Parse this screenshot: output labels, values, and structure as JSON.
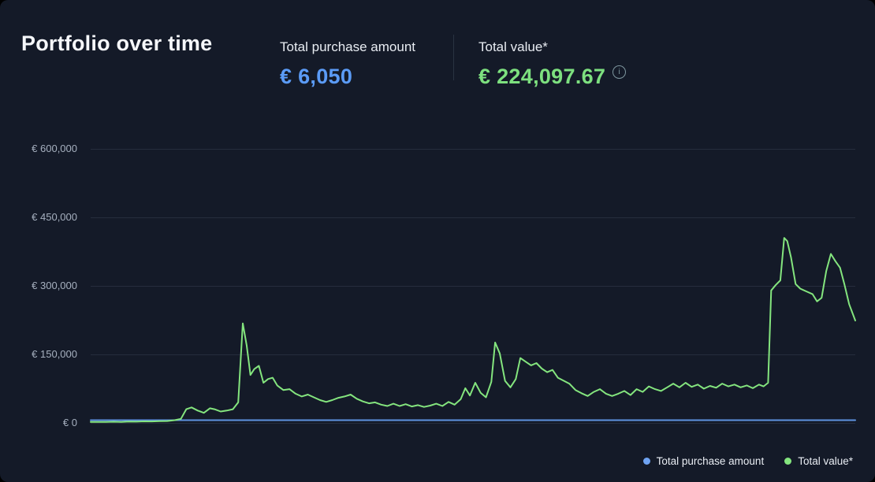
{
  "header": {
    "title": "Portfolio over time",
    "info_glyph": "i",
    "stats": [
      {
        "label": "Total purchase amount",
        "value": "€ 6,050",
        "color": "#5b9bf6"
      },
      {
        "label": "Total value*",
        "value": "€ 224,097.67",
        "color": "#7de07f"
      }
    ]
  },
  "legend": {
    "items": [
      {
        "label": "Total purchase amount",
        "color": "#6fa3f2"
      },
      {
        "label": "Total value*",
        "color": "#84e57e"
      }
    ]
  },
  "chart_data": {
    "type": "line",
    "title": "Portfolio over time",
    "xlabel": "",
    "ylabel": "",
    "ylim": [
      0,
      600000
    ],
    "grid": "horizontal",
    "legend_position": "bottom-right",
    "currency": "EUR",
    "yticks": [
      {
        "value": 600000,
        "label": "€ 600,000"
      },
      {
        "value": 450000,
        "label": "€ 450,000"
      },
      {
        "value": 300000,
        "label": "€ 300,000"
      },
      {
        "value": 150000,
        "label": "€ 150,000"
      },
      {
        "value": 0,
        "label": "€ 0"
      }
    ],
    "series": [
      {
        "name": "Total purchase amount",
        "color": "#5e93e0",
        "points": [
          [
            0.0,
            6050
          ],
          [
            1.0,
            6050
          ]
        ]
      },
      {
        "name": "Total value*",
        "color": "#84e57e",
        "points": [
          [
            0.0,
            2000
          ],
          [
            0.01,
            2200
          ],
          [
            0.02,
            2000
          ],
          [
            0.03,
            2600
          ],
          [
            0.04,
            2300
          ],
          [
            0.05,
            3000
          ],
          [
            0.06,
            2800
          ],
          [
            0.07,
            3400
          ],
          [
            0.08,
            3200
          ],
          [
            0.09,
            3800
          ],
          [
            0.1,
            4200
          ],
          [
            0.11,
            6000
          ],
          [
            0.118,
            9000
          ],
          [
            0.125,
            30000
          ],
          [
            0.132,
            34000
          ],
          [
            0.14,
            27000
          ],
          [
            0.148,
            22000
          ],
          [
            0.156,
            32000
          ],
          [
            0.162,
            30000
          ],
          [
            0.17,
            25000
          ],
          [
            0.178,
            27000
          ],
          [
            0.186,
            30000
          ],
          [
            0.193,
            45000
          ],
          [
            0.199,
            218000
          ],
          [
            0.204,
            170000
          ],
          [
            0.209,
            105000
          ],
          [
            0.214,
            118000
          ],
          [
            0.22,
            125000
          ],
          [
            0.226,
            88000
          ],
          [
            0.232,
            96000
          ],
          [
            0.238,
            99000
          ],
          [
            0.244,
            82000
          ],
          [
            0.252,
            72000
          ],
          [
            0.26,
            74000
          ],
          [
            0.268,
            64000
          ],
          [
            0.276,
            58000
          ],
          [
            0.284,
            62000
          ],
          [
            0.292,
            56000
          ],
          [
            0.3,
            50000
          ],
          [
            0.308,
            46000
          ],
          [
            0.316,
            50000
          ],
          [
            0.324,
            55000
          ],
          [
            0.332,
            58000
          ],
          [
            0.34,
            62000
          ],
          [
            0.348,
            53000
          ],
          [
            0.356,
            47000
          ],
          [
            0.364,
            43000
          ],
          [
            0.372,
            45000
          ],
          [
            0.38,
            40000
          ],
          [
            0.388,
            37000
          ],
          [
            0.396,
            42000
          ],
          [
            0.404,
            37000
          ],
          [
            0.412,
            41000
          ],
          [
            0.42,
            36000
          ],
          [
            0.428,
            39000
          ],
          [
            0.436,
            35000
          ],
          [
            0.444,
            38000
          ],
          [
            0.452,
            42000
          ],
          [
            0.46,
            37000
          ],
          [
            0.468,
            46000
          ],
          [
            0.476,
            40000
          ],
          [
            0.484,
            52000
          ],
          [
            0.49,
            76000
          ],
          [
            0.496,
            60000
          ],
          [
            0.503,
            88000
          ],
          [
            0.51,
            66000
          ],
          [
            0.517,
            56000
          ],
          [
            0.524,
            90000
          ],
          [
            0.529,
            176000
          ],
          [
            0.535,
            152000
          ],
          [
            0.542,
            92000
          ],
          [
            0.549,
            78000
          ],
          [
            0.556,
            96000
          ],
          [
            0.562,
            142000
          ],
          [
            0.569,
            134000
          ],
          [
            0.576,
            126000
          ],
          [
            0.583,
            131000
          ],
          [
            0.59,
            119000
          ],
          [
            0.597,
            111000
          ],
          [
            0.604,
            116000
          ],
          [
            0.611,
            99000
          ],
          [
            0.618,
            93000
          ],
          [
            0.626,
            86000
          ],
          [
            0.634,
            72000
          ],
          [
            0.642,
            65000
          ],
          [
            0.65,
            59000
          ],
          [
            0.658,
            68000
          ],
          [
            0.666,
            74000
          ],
          [
            0.674,
            64000
          ],
          [
            0.682,
            59000
          ],
          [
            0.69,
            64000
          ],
          [
            0.698,
            70000
          ],
          [
            0.706,
            61000
          ],
          [
            0.714,
            74000
          ],
          [
            0.722,
            68000
          ],
          [
            0.73,
            80000
          ],
          [
            0.738,
            74000
          ],
          [
            0.746,
            70000
          ],
          [
            0.754,
            78000
          ],
          [
            0.762,
            86000
          ],
          [
            0.77,
            78000
          ],
          [
            0.778,
            88000
          ],
          [
            0.786,
            79000
          ],
          [
            0.794,
            84000
          ],
          [
            0.802,
            75000
          ],
          [
            0.81,
            81000
          ],
          [
            0.818,
            77000
          ],
          [
            0.826,
            86000
          ],
          [
            0.834,
            80000
          ],
          [
            0.842,
            84000
          ],
          [
            0.85,
            78000
          ],
          [
            0.858,
            82000
          ],
          [
            0.866,
            76000
          ],
          [
            0.874,
            84000
          ],
          [
            0.88,
            80000
          ],
          [
            0.886,
            88000
          ],
          [
            0.89,
            290000
          ],
          [
            0.896,
            302000
          ],
          [
            0.902,
            312000
          ],
          [
            0.907,
            405000
          ],
          [
            0.911,
            398000
          ],
          [
            0.916,
            362000
          ],
          [
            0.922,
            304000
          ],
          [
            0.928,
            294000
          ],
          [
            0.936,
            288000
          ],
          [
            0.944,
            282000
          ],
          [
            0.95,
            266000
          ],
          [
            0.956,
            274000
          ],
          [
            0.962,
            332000
          ],
          [
            0.968,
            370000
          ],
          [
            0.974,
            354000
          ],
          [
            0.98,
            340000
          ],
          [
            0.986,
            302000
          ],
          [
            0.992,
            260000
          ],
          [
            1.0,
            224098
          ]
        ]
      }
    ]
  }
}
